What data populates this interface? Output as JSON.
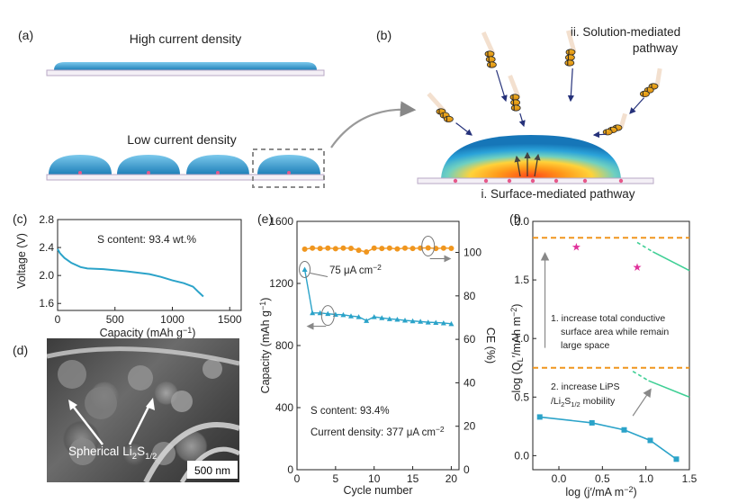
{
  "panels": {
    "a": {
      "label": "(a)",
      "high_title": "High current density",
      "low_title": "Low current density"
    },
    "b": {
      "label": "(b)",
      "solution_line1": "ii. Solution-mediated",
      "solution_line2": "pathway",
      "surface": "i. Surface-mediated pathway"
    },
    "c": {
      "label": "(c)",
      "annotation": "S content: 93.4 wt.%",
      "xlabel_text": "Capacity (mAh g",
      "xlabel_sup": "−1",
      "xlabel_end": ")",
      "ylabel": "Voltage (V)"
    },
    "d": {
      "label": "(d)",
      "annotation": "Spherical",
      "formula": "Li",
      "formula_sub": "2",
      "formula_s": "S",
      "formula_sub2": "1/2",
      "scale_bar": "500 nm"
    },
    "e": {
      "label": "(e)",
      "current_marker": "75 μA cm",
      "current_marker_sup": "−2",
      "annotation1": "S content: 93.4%",
      "annotation2": "Current density: 377 μA cm",
      "annotation2_sup": "−2",
      "ylabel_left_text": "Capacity (mAh g",
      "ylabel_left_sup": "−1",
      "ylabel_left_end": ")",
      "ylabel_right": "CE (%)",
      "xlabel": "Cycle number"
    },
    "f": {
      "label": "(f)",
      "note1_line1": "1. increase total conductive",
      "note1_line2": "surface area while remain",
      "note1_line3": "large space",
      "note2_line1": "2. increase LiPS",
      "note2_line2": "/Li",
      "note2_sub": "2",
      "note2_s": "S",
      "note2_sub2": "1/2",
      "note2_end": " mobility",
      "ylabel_text": "log (Q",
      "ylabel_sub": "L",
      "ylabel_prime": "′/mAh m",
      "ylabel_sup": "−2",
      "ylabel_end": ")",
      "xlabel_text": "log (j",
      "xlabel_prime": "′/mA m",
      "xlabel_sup": "−2",
      "xlabel_end": ")"
    }
  },
  "chart_data": [
    {
      "id": "c",
      "type": "line",
      "title": "",
      "xlabel": "Capacity (mAh g−1)",
      "ylabel": "Voltage (V)",
      "xlim": [
        0,
        1600
      ],
      "ylim": [
        1.5,
        2.8
      ],
      "xticks": [
        0,
        500,
        1000,
        1500
      ],
      "yticks": [
        1.6,
        2.0,
        2.4,
        2.8
      ],
      "series": [
        {
          "name": "discharge",
          "color": "#2ba3c9",
          "x": [
            0,
            20,
            60,
            120,
            200,
            260,
            400,
            600,
            800,
            900,
            1000,
            1100,
            1180,
            1230,
            1270
          ],
          "y": [
            2.38,
            2.32,
            2.25,
            2.18,
            2.12,
            2.1,
            2.09,
            2.06,
            2.02,
            1.98,
            1.93,
            1.89,
            1.84,
            1.76,
            1.7
          ]
        }
      ]
    },
    {
      "id": "e",
      "type": "scatter",
      "title": "",
      "xlabel": "Cycle number",
      "ylabel": "Capacity (mAh g−1)",
      "ylabel_right": "CE (%)",
      "xlim": [
        0,
        21
      ],
      "ylim": [
        0,
        1600
      ],
      "ylim_right": [
        0,
        114.3
      ],
      "xticks": [
        0,
        5,
        10,
        15,
        20
      ],
      "yticks": [
        0,
        400,
        800,
        1200,
        1600
      ],
      "yticks_right": [
        0,
        20,
        40,
        60,
        80,
        100
      ],
      "series": [
        {
          "name": "Capacity",
          "color": "#2ba3c9",
          "x": [
            1,
            2,
            3,
            4,
            5,
            6,
            7,
            8,
            9,
            10,
            11,
            12,
            13,
            14,
            15,
            16,
            17,
            18,
            19,
            20
          ],
          "y": [
            1290,
            1010,
            1010,
            1005,
            1000,
            998,
            990,
            985,
            960,
            985,
            978,
            972,
            968,
            962,
            958,
            955,
            950,
            948,
            945,
            940
          ]
        },
        {
          "name": "CE",
          "color": "#f0961e",
          "axis": "right",
          "x": [
            1,
            2,
            3,
            4,
            5,
            6,
            7,
            8,
            9,
            10,
            11,
            12,
            13,
            14,
            15,
            16,
            17,
            18,
            19,
            20
          ],
          "y": [
            101.5,
            102.0,
            101.8,
            102.0,
            101.7,
            102.0,
            101.9,
            101.0,
            100.2,
            102.0,
            101.8,
            102.0,
            101.6,
            102.0,
            101.8,
            102.0,
            102.1,
            101.8,
            102.0,
            101.9
          ]
        }
      ]
    },
    {
      "id": "f",
      "type": "scatter",
      "title": "",
      "xlabel": "log (j′/mA m−2)",
      "ylabel": "log (QL′/mAh m−2)",
      "xlim": [
        -0.3,
        1.5
      ],
      "ylim": [
        -0.12,
        2.0
      ],
      "xticks": [
        0.0,
        0.5,
        1.0,
        1.5
      ],
      "yticks": [
        0.0,
        0.5,
        1.0,
        1.5,
        2.0
      ],
      "series": [
        {
          "name": "measured",
          "color": "#2ba3c9",
          "x": [
            -0.22,
            0.38,
            0.75,
            1.05,
            1.35
          ],
          "y": [
            0.33,
            0.28,
            0.22,
            0.13,
            -0.03
          ]
        },
        {
          "name": "literature",
          "color": "#e0309a",
          "x": [
            0.2,
            0.9
          ],
          "y": [
            1.78,
            1.61
          ]
        }
      ],
      "reference_lines": [
        {
          "name": "upper-limit",
          "color": "#f0961e",
          "y": 1.86
        },
        {
          "name": "lower-limit",
          "color": "#f0961e",
          "y": 0.75
        }
      ]
    }
  ]
}
